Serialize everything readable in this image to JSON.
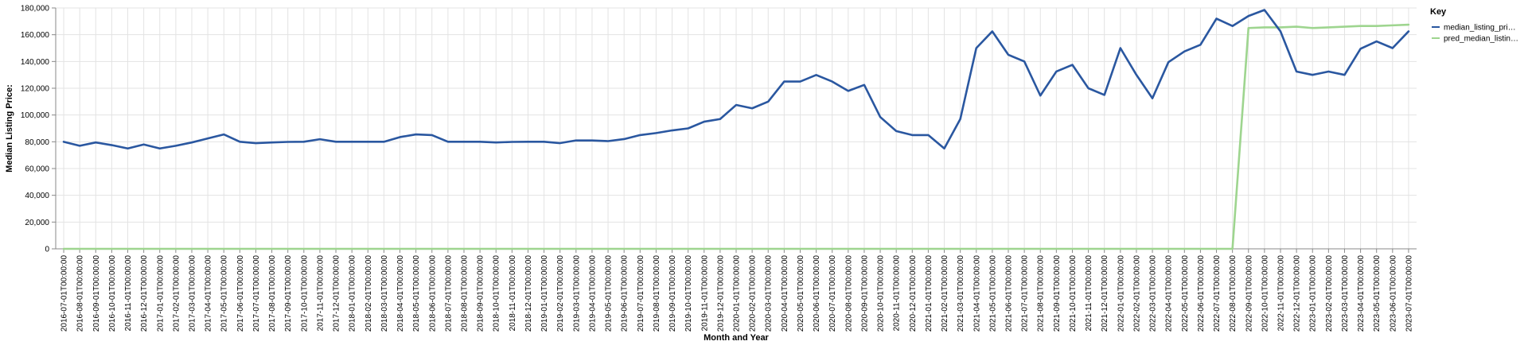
{
  "colors": {
    "series_1": "#2a57a0",
    "series_2": "#9ed58f",
    "grid": "#e3e3e3",
    "axis": "#888888",
    "tick_text": "#000000",
    "background": "#ffffff"
  },
  "chart_data": {
    "type": "line",
    "xlabel": "Month and Year",
    "ylabel": "Median Listing Price:",
    "ylim": [
      0,
      180000
    ],
    "y_ticks": [
      0,
      20000,
      40000,
      60000,
      80000,
      100000,
      120000,
      140000,
      160000,
      180000
    ],
    "y_tick_labels": [
      "0",
      "20,000",
      "40,000",
      "60,000",
      "80,000",
      "100,000",
      "120,000",
      "140,000",
      "160,000",
      "180,000"
    ],
    "grid": true,
    "legend": {
      "title": "Key",
      "position": "right"
    },
    "categories": [
      "2016-07-01T00:00:00",
      "2016-08-01T00:00:00",
      "2016-09-01T00:00:00",
      "2016-10-01T00:00:00",
      "2016-11-01T00:00:00",
      "2016-12-01T00:00:00",
      "2017-01-01T00:00:00",
      "2017-02-01T00:00:00",
      "2017-03-01T00:00:00",
      "2017-04-01T00:00:00",
      "2017-05-01T00:00:00",
      "2017-06-01T00:00:00",
      "2017-07-01T00:00:00",
      "2017-08-01T00:00:00",
      "2017-09-01T00:00:00",
      "2017-10-01T00:00:00",
      "2017-11-01T00:00:00",
      "2017-12-01T00:00:00",
      "2018-01-01T00:00:00",
      "2018-02-01T00:00:00",
      "2018-03-01T00:00:00",
      "2018-04-01T00:00:00",
      "2018-05-01T00:00:00",
      "2018-06-01T00:00:00",
      "2018-07-01T00:00:00",
      "2018-08-01T00:00:00",
      "2018-09-01T00:00:00",
      "2018-10-01T00:00:00",
      "2018-11-01T00:00:00",
      "2018-12-01T00:00:00",
      "2019-01-01T00:00:00",
      "2019-02-01T00:00:00",
      "2019-03-01T00:00:00",
      "2019-04-01T00:00:00",
      "2019-05-01T00:00:00",
      "2019-06-01T00:00:00",
      "2019-07-01T00:00:00",
      "2019-08-01T00:00:00",
      "2019-09-01T00:00:00",
      "2019-10-01T00:00:00",
      "2019-11-01T00:00:00",
      "2019-12-01T00:00:00",
      "2020-01-01T00:00:00",
      "2020-02-01T00:00:00",
      "2020-03-01T00:00:00",
      "2020-04-01T00:00:00",
      "2020-05-01T00:00:00",
      "2020-06-01T00:00:00",
      "2020-07-01T00:00:00",
      "2020-08-01T00:00:00",
      "2020-09-01T00:00:00",
      "2020-10-01T00:00:00",
      "2020-11-01T00:00:00",
      "2020-12-01T00:00:00",
      "2021-01-01T00:00:00",
      "2021-02-01T00:00:00",
      "2021-03-01T00:00:00",
      "2021-04-01T00:00:00",
      "2021-05-01T00:00:00",
      "2021-06-01T00:00:00",
      "2021-07-01T00:00:00",
      "2021-08-01T00:00:00",
      "2021-09-01T00:00:00",
      "2021-10-01T00:00:00",
      "2021-11-01T00:00:00",
      "2021-12-01T00:00:00",
      "2022-01-01T00:00:00",
      "2022-02-01T00:00:00",
      "2022-03-01T00:00:00",
      "2022-04-01T00:00:00",
      "2022-05-01T00:00:00",
      "2022-06-01T00:00:00",
      "2022-07-01T00:00:00",
      "2022-08-01T00:00:00",
      "2022-09-01T00:00:00",
      "2022-10-01T00:00:00",
      "2022-11-01T00:00:00",
      "2022-12-01T00:00:00",
      "2023-01-01T00:00:00",
      "2023-02-01T00:00:00",
      "2023-03-01T00:00:00",
      "2023-04-01T00:00:00",
      "2023-05-01T00:00:00",
      "2023-06-01T00:00:00",
      "2023-07-01T00:00:00"
    ],
    "series": [
      {
        "name": "median_listing_pri…",
        "color": "#2a57a0",
        "values": [
          80000,
          77000,
          79500,
          77500,
          75000,
          78000,
          75000,
          77000,
          79500,
          82500,
          85500,
          80000,
          79000,
          79500,
          79900,
          80000,
          81900,
          80000,
          80000,
          80000,
          80000,
          83500,
          85500,
          85000,
          80000,
          80000,
          80000,
          79500,
          79900,
          80000,
          80000,
          79000,
          81000,
          81000,
          80500,
          82000,
          85000,
          86500,
          88500,
          90000,
          95000,
          97000,
          107500,
          105000,
          110000,
          125000,
          125000,
          129900,
          125000,
          118000,
          122500,
          98500,
          88000,
          85000,
          85000,
          75000,
          97000,
          150000,
          162500,
          145000,
          140000,
          114500,
          132500,
          137500,
          120000,
          115000,
          150000,
          130000,
          112500,
          139500,
          147500,
          152500,
          172000,
          166500,
          174000,
          178500,
          162500,
          132500,
          130000,
          132500,
          130000,
          149500,
          155000,
          150000,
          162500
        ]
      },
      {
        "name": "pred_median_listin…",
        "color": "#9ed58f",
        "values": [
          0,
          0,
          0,
          0,
          0,
          0,
          0,
          0,
          0,
          0,
          0,
          0,
          0,
          0,
          0,
          0,
          0,
          0,
          0,
          0,
          0,
          0,
          0,
          0,
          0,
          0,
          0,
          0,
          0,
          0,
          0,
          0,
          0,
          0,
          0,
          0,
          0,
          0,
          0,
          0,
          0,
          0,
          0,
          0,
          0,
          0,
          0,
          0,
          0,
          0,
          0,
          0,
          0,
          0,
          0,
          0,
          0,
          0,
          0,
          0,
          0,
          0,
          0,
          0,
          0,
          0,
          0,
          0,
          0,
          0,
          0,
          0,
          0,
          0,
          165000,
          165500,
          165500,
          166000,
          165000,
          165500,
          166000,
          166500,
          166500,
          167000,
          167500
        ]
      }
    ]
  }
}
